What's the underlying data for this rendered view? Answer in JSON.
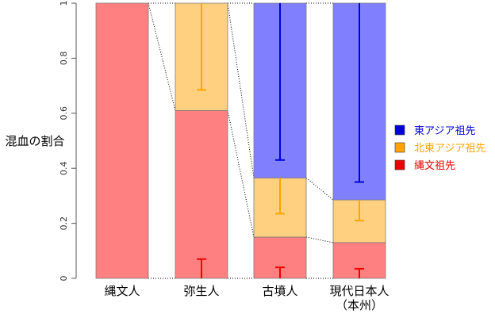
{
  "chart_data": {
    "type": "bar",
    "stacked": true,
    "ylabel": "混血の割合",
    "ylim": [
      0,
      1
    ],
    "yticks": [
      "0",
      "0.2",
      "0.4",
      "0.6",
      "0.8",
      "1"
    ],
    "categories": [
      {
        "label": "縄文人",
        "sublabel": ""
      },
      {
        "label": "弥生人",
        "sublabel": ""
      },
      {
        "label": "古墳人",
        "sublabel": ""
      },
      {
        "label": "現代日本人",
        "sublabel": "（本州）"
      }
    ],
    "series": [
      {
        "name": "縄文祖先",
        "color": "#ff8080",
        "error_color": "#ee0000",
        "legend_color": "#ee0000",
        "values": [
          1.0,
          0.61,
          0.15,
          0.13
        ],
        "error_upper": [
          0.0,
          0.07,
          0.04,
          0.035
        ]
      },
      {
        "name": "北東アジア祖先",
        "color": "#ffd080",
        "error_color": "#ffa500",
        "legend_color": "#ffa500",
        "values": [
          0.0,
          0.39,
          0.215,
          0.155
        ],
        "error_upper": [
          0.0,
          0.685,
          0.235,
          0.21
        ]
      },
      {
        "name": "東アジア祖先",
        "color": "#8080ff",
        "error_color": "#0000dd",
        "legend_color": "#0000dd",
        "values": [
          0.0,
          0.0,
          0.635,
          0.715
        ],
        "error_upper": [
          0.0,
          0.0,
          0.43,
          0.35
        ]
      }
    ],
    "legend_order": [
      "東アジア祖先",
      "北東アジア祖先",
      "縄文祖先"
    ],
    "legend_position": "right",
    "connector_lines": true
  }
}
